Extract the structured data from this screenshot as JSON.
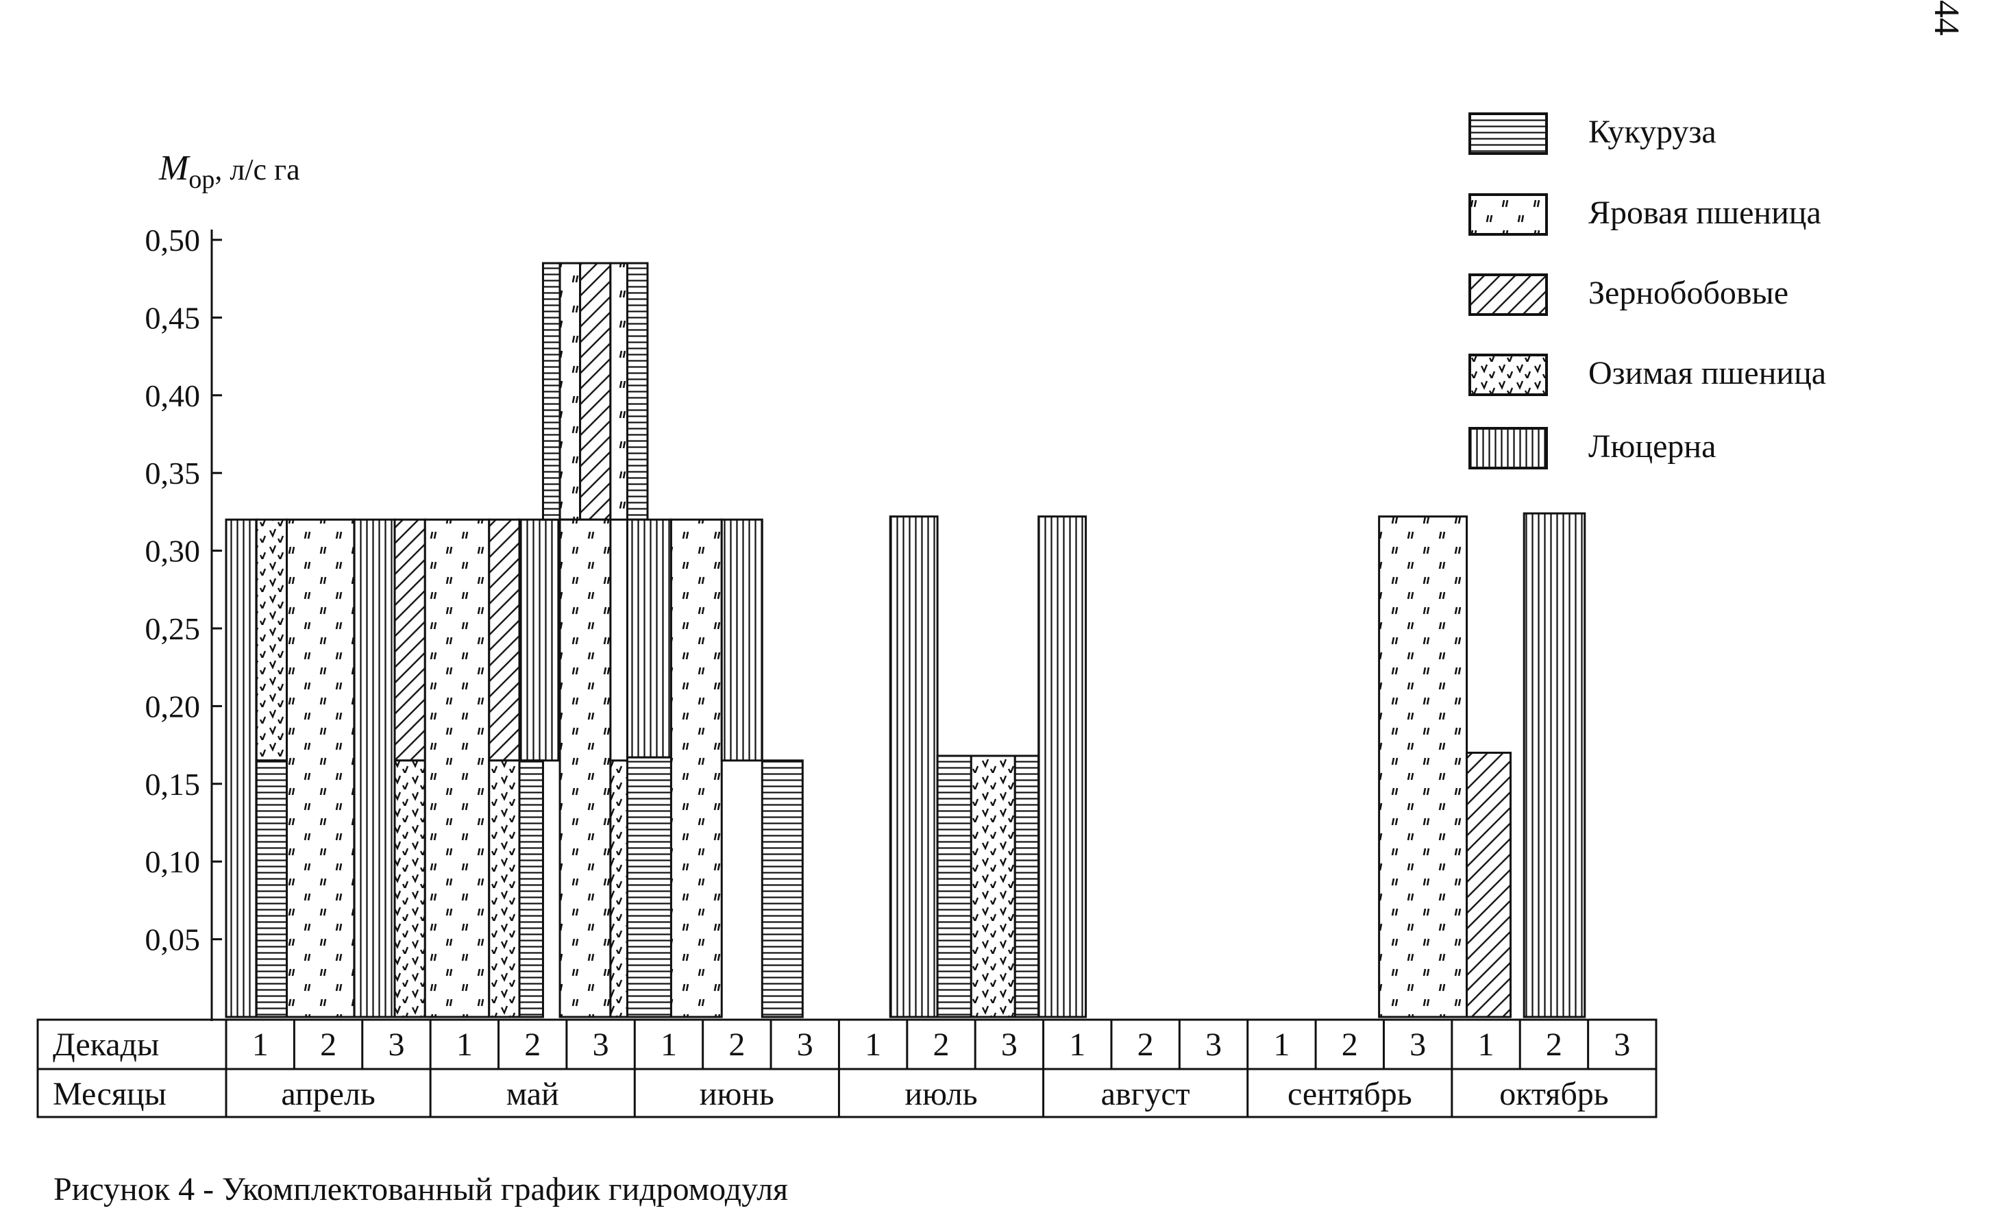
{
  "page_number": "44",
  "caption": "Рисунок 4  - Укомплектованный график гидромодуля",
  "chart_data": {
    "type": "bar",
    "ylabel_main": "M",
    "ylabel_sub": "ор",
    "ylabel_unit": ", л/с га",
    "ylim": [
      0,
      0.5
    ],
    "yticks": [
      "0,05",
      "0,10",
      "0,15",
      "0,20",
      "0,25",
      "0,30",
      "0,35",
      "0,40",
      "0,45",
      "0,50"
    ],
    "table": {
      "row_decades_label": "Декады",
      "row_months_label": "Месяцы",
      "months": [
        {
          "name": "апрель",
          "decades": [
            "1",
            "2",
            "3"
          ]
        },
        {
          "name": "май",
          "decades": [
            "1",
            "2",
            "3"
          ]
        },
        {
          "name": "июнь",
          "decades": [
            "1",
            "2",
            "3"
          ]
        },
        {
          "name": "июль",
          "decades": [
            "1",
            "2",
            "3"
          ]
        },
        {
          "name": "август",
          "decades": [
            "1",
            "2",
            "3"
          ]
        },
        {
          "name": "сентябрь",
          "decades": [
            "1",
            "2",
            "3"
          ]
        },
        {
          "name": "октябрь",
          "decades": [
            "1",
            "2",
            "3"
          ]
        }
      ]
    },
    "legend_position": "top-right",
    "series": [
      {
        "name": "Кукуруза",
        "pattern": "horizontal-lines"
      },
      {
        "name": "Яровая пшеница",
        "pattern": "dashes"
      },
      {
        "name": "Зернобобовые",
        "pattern": "diagonal-lines"
      },
      {
        "name": "Озимая пшеница",
        "pattern": "checkmarks"
      },
      {
        "name": "Люцерна",
        "pattern": "vertical-lines"
      }
    ],
    "bars": [
      {
        "series": 4,
        "x0": 0.0,
        "x1": 0.45,
        "y0": 0.0,
        "y1": 0.32
      },
      {
        "series": 3,
        "x0": 0.45,
        "x1": 0.9,
        "y0": 0.165,
        "y1": 0.32
      },
      {
        "series": 0,
        "x0": 0.45,
        "x1": 0.9,
        "y0": 0.0,
        "y1": 0.165
      },
      {
        "series": 1,
        "x0": 0.9,
        "x1": 1.9,
        "y0": 0.0,
        "y1": 0.32
      },
      {
        "series": 4,
        "x0": 1.9,
        "x1": 2.5,
        "y0": 0.0,
        "y1": 0.32
      },
      {
        "series": 2,
        "x0": 2.5,
        "x1": 2.95,
        "y0": 0.165,
        "y1": 0.32
      },
      {
        "series": 3,
        "x0": 2.5,
        "x1": 2.95,
        "y0": 0.0,
        "y1": 0.165
      },
      {
        "series": 1,
        "x0": 2.95,
        "x1": 3.9,
        "y0": 0.0,
        "y1": 0.32
      },
      {
        "series": 2,
        "x0": 3.9,
        "x1": 4.35,
        "y0": 0.165,
        "y1": 0.32
      },
      {
        "series": 3,
        "x0": 3.9,
        "x1": 4.35,
        "y0": 0.0,
        "y1": 0.165
      },
      {
        "series": 4,
        "x0": 4.35,
        "x1": 4.95,
        "y0": 0.165,
        "y1": 0.32
      },
      {
        "series": 0,
        "x0": 4.35,
        "x1": 4.7,
        "y0": 0.0,
        "y1": 0.165
      },
      {
        "series": 0,
        "x0": 4.7,
        "x1": 4.95,
        "y0": 0.32,
        "y1": 0.485
      },
      {
        "series": 1,
        "x0": 4.95,
        "x1": 5.25,
        "y0": 0.32,
        "y1": 0.485
      },
      {
        "series": 2,
        "x0": 5.25,
        "x1": 5.7,
        "y0": 0.32,
        "y1": 0.485
      },
      {
        "series": 1,
        "x0": 5.7,
        "x1": 5.95,
        "y0": 0.32,
        "y1": 0.485
      },
      {
        "series": 0,
        "x0": 5.95,
        "x1": 6.25,
        "y0": 0.32,
        "y1": 0.485
      },
      {
        "series": 1,
        "x0": 4.95,
        "x1": 5.7,
        "y0": 0.0,
        "y1": 0.32
      },
      {
        "series": 3,
        "x0": 5.7,
        "x1": 5.95,
        "y0": 0.0,
        "y1": 0.165
      },
      {
        "series": 4,
        "x0": 5.95,
        "x1": 6.6,
        "y0": 0.167,
        "y1": 0.32
      },
      {
        "series": 0,
        "x0": 5.95,
        "x1": 6.6,
        "y0": 0.0,
        "y1": 0.167
      },
      {
        "series": 1,
        "x0": 6.6,
        "x1": 7.35,
        "y0": 0.0,
        "y1": 0.32
      },
      {
        "series": 4,
        "x0": 7.35,
        "x1": 7.95,
        "y0": 0.165,
        "y1": 0.32
      },
      {
        "series": 0,
        "x0": 7.95,
        "x1": 8.55,
        "y0": 0.0,
        "y1": 0.165
      },
      {
        "series": 4,
        "x0": 9.85,
        "x1": 10.55,
        "y0": 0.0,
        "y1": 0.322
      },
      {
        "series": 0,
        "x0": 10.55,
        "x1": 11.05,
        "y0": 0.0,
        "y1": 0.168
      },
      {
        "series": 3,
        "x0": 11.05,
        "x1": 11.7,
        "y0": 0.0,
        "y1": 0.168
      },
      {
        "series": 0,
        "x0": 11.7,
        "x1": 12.05,
        "y0": 0.0,
        "y1": 0.168
      },
      {
        "series": 4,
        "x0": 12.05,
        "x1": 12.75,
        "y0": 0.0,
        "y1": 0.322
      },
      {
        "series": 1,
        "x0": 17.1,
        "x1": 18.4,
        "y0": 0.0,
        "y1": 0.322
      },
      {
        "series": 2,
        "x0": 18.4,
        "x1": 19.05,
        "y0": 0.0,
        "y1": 0.17
      },
      {
        "series": 4,
        "x0": 19.25,
        "x1": 20.15,
        "y0": 0.0,
        "y1": 0.324
      }
    ]
  }
}
